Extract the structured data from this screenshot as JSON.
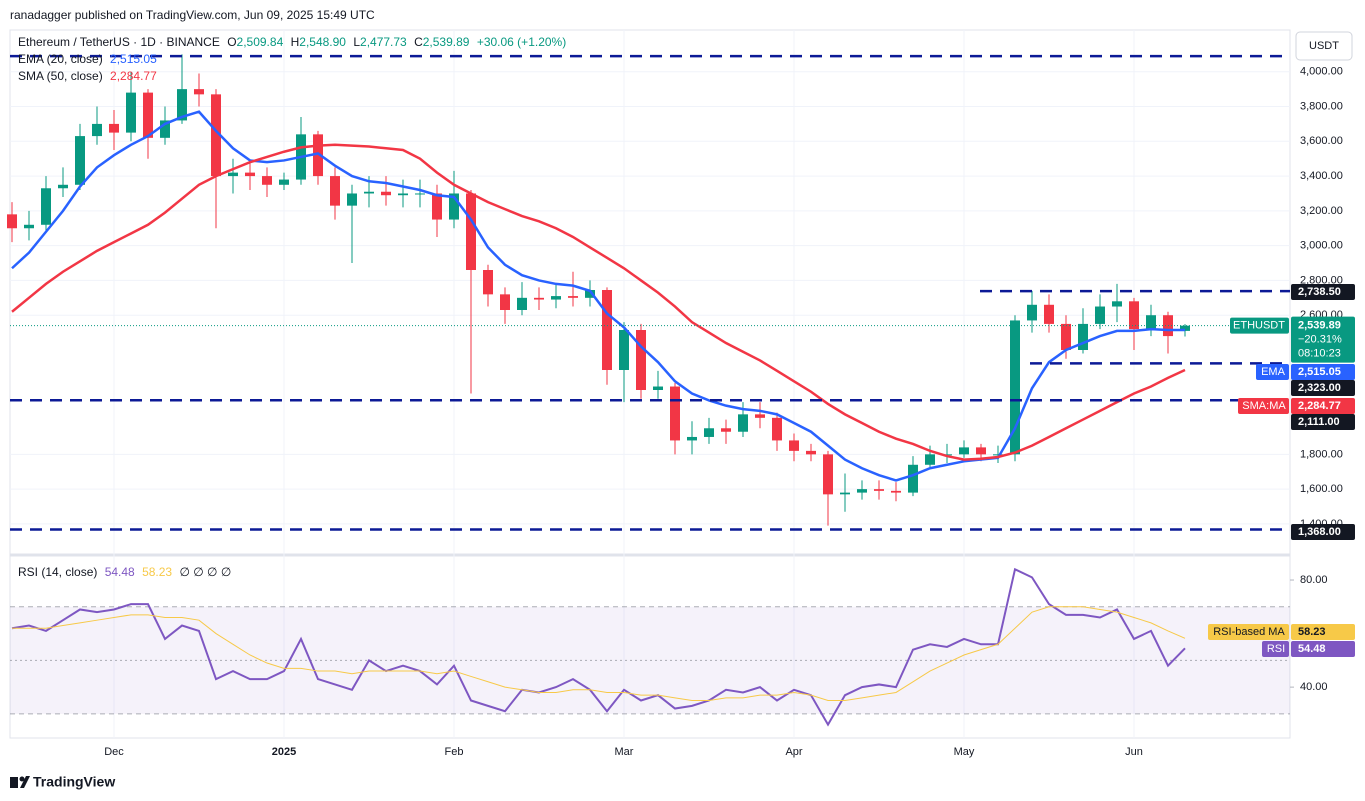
{
  "chart_data": [
    {
      "type": "candlestick",
      "header": "ranadagger published on TradingView.com, Jun 09, 2025 15:49 UTC",
      "title": "Ethereum / TetherUS · 1D · BINANCE",
      "quote": {
        "open_label": "O",
        "open": "2,509.84",
        "high_label": "H",
        "high": "2,548.90",
        "low_label": "L",
        "low": "2,477.73",
        "close_label": "C",
        "close": "2,539.89",
        "change": "+30.06 (+1.20%)"
      },
      "currency": "USDT",
      "attribution": "TradingView",
      "categories": [
        null,
        null,
        null,
        null,
        null,
        null,
        "Dec",
        null,
        null,
        null,
        null,
        null,
        null,
        null,
        null,
        null,
        "2025",
        null,
        null,
        null,
        null,
        null,
        null,
        null,
        null,
        null,
        "Feb",
        null,
        null,
        null,
        null,
        null,
        null,
        null,
        null,
        null,
        "Mar",
        null,
        null,
        null,
        null,
        null,
        null,
        null,
        null,
        null,
        "Apr",
        null,
        null,
        null,
        null,
        null,
        null,
        null,
        null,
        null,
        "May",
        null,
        null,
        null,
        null,
        null,
        null,
        null,
        null,
        null,
        "Jun",
        null,
        null,
        null
      ],
      "open": [
        3180,
        3100,
        3120,
        3330,
        3350,
        3630,
        3700,
        3650,
        3880,
        3620,
        3720,
        3900,
        3870,
        3400,
        3420,
        3400,
        3350,
        3380,
        3640,
        3400,
        3230,
        3300,
        3310,
        3290,
        3300,
        3300,
        3150,
        3300,
        2860,
        2720,
        2630,
        2700,
        2690,
        2710,
        2700,
        2745,
        2285,
        2515,
        2170,
        2190,
        1880,
        1900,
        1950,
        1930,
        2030,
        2010,
        1880,
        1820,
        1800,
        1570,
        1580,
        1600,
        1590,
        1580,
        1740,
        1800,
        1800,
        1840,
        1800,
        1800,
        2570,
        2660,
        2550,
        2400,
        2550,
        2650,
        2680,
        2520,
        2600,
        2509.84
      ],
      "high": [
        3250,
        3200,
        3400,
        3450,
        3700,
        3800,
        3780,
        4000,
        3900,
        3800,
        4100,
        3990,
        3900,
        3500,
        3480,
        3450,
        3420,
        3740,
        3660,
        3450,
        3350,
        3400,
        3400,
        3380,
        3380,
        3350,
        3430,
        3320,
        2890,
        2760,
        2790,
        2760,
        2780,
        2850,
        2800,
        2760,
        2560,
        2550,
        2280,
        2210,
        1990,
        2010,
        2000,
        2100,
        2100,
        2040,
        1920,
        1860,
        1820,
        1690,
        1650,
        1650,
        1640,
        1790,
        1850,
        1860,
        1880,
        1860,
        1850,
        2600,
        2740,
        2720,
        2600,
        2640,
        2720,
        2780,
        2700,
        2660,
        2620,
        2548.9
      ],
      "low": [
        3020,
        3030,
        3080,
        3280,
        3320,
        3580,
        3550,
        3600,
        3500,
        3580,
        3700,
        3800,
        3100,
        3300,
        3320,
        3280,
        3320,
        3350,
        3350,
        3150,
        2900,
        3220,
        3230,
        3220,
        3220,
        3050,
        3100,
        2150,
        2650,
        2550,
        2600,
        2630,
        2640,
        2650,
        2650,
        2200,
        2100,
        2120,
        2120,
        1800,
        1800,
        1860,
        1860,
        1900,
        1950,
        1820,
        1760,
        1760,
        1390,
        1470,
        1540,
        1540,
        1530,
        1560,
        1720,
        1750,
        1780,
        1760,
        1750,
        1760,
        2500,
        2500,
        2350,
        2380,
        2520,
        2560,
        2400,
        2480,
        2380,
        2477.73
      ],
      "close": [
        3100,
        3120,
        3330,
        3350,
        3630,
        3700,
        3650,
        3880,
        3620,
        3720,
        3900,
        3870,
        3400,
        3420,
        3400,
        3350,
        3380,
        3640,
        3400,
        3230,
        3300,
        3310,
        3290,
        3300,
        3300,
        3150,
        3300,
        2860,
        2720,
        2630,
        2700,
        2690,
        2710,
        2700,
        2745,
        2285,
        2515,
        2170,
        2190,
        1880,
        1900,
        1950,
        1930,
        2030,
        2010,
        1880,
        1820,
        1800,
        1570,
        1580,
        1600,
        1590,
        1580,
        1740,
        1800,
        1800,
        1840,
        1800,
        1800,
        2570,
        2660,
        2550,
        2400,
        2550,
        2650,
        2680,
        2520,
        2600,
        2480,
        2539.89
      ],
      "up_color": "#089981",
      "down_color": "#f23645",
      "series": [
        {
          "name": "EMA (20, close)",
          "badge": "EMA",
          "color": "#2962ff",
          "last_label": "2,515.05",
          "values": [
            2870,
            2960,
            3080,
            3200,
            3340,
            3450,
            3520,
            3580,
            3630,
            3700,
            3740,
            3770,
            3660,
            3560,
            3490,
            3480,
            3490,
            3510,
            3530,
            3460,
            3400,
            3370,
            3360,
            3340,
            3320,
            3290,
            3280,
            3150,
            2990,
            2890,
            2830,
            2800,
            2780,
            2770,
            2740,
            2610,
            2530,
            2420,
            2330,
            2220,
            2150,
            2110,
            2080,
            2060,
            2050,
            2030,
            1980,
            1930,
            1850,
            1770,
            1720,
            1680,
            1650,
            1680,
            1720,
            1740,
            1760,
            1770,
            1780,
            1950,
            2180,
            2330,
            2400,
            2440,
            2480,
            2510,
            2510,
            2520,
            2515,
            2515.05
          ]
        },
        {
          "name": "SMA (50, close)",
          "badge": "SMA:MA",
          "color": "#f23645",
          "last_label": "2,284.77",
          "values": [
            2620,
            2700,
            2780,
            2850,
            2910,
            2970,
            3020,
            3070,
            3120,
            3190,
            3270,
            3350,
            3400,
            3440,
            3480,
            3510,
            3540,
            3565,
            3575,
            3580,
            3575,
            3570,
            3560,
            3550,
            3500,
            3420,
            3350,
            3300,
            3250,
            3210,
            3170,
            3140,
            3100,
            3050,
            2990,
            2930,
            2870,
            2800,
            2730,
            2650,
            2560,
            2500,
            2440,
            2390,
            2340,
            2280,
            2220,
            2160,
            2090,
            2030,
            1980,
            1930,
            1890,
            1860,
            1820,
            1790,
            1770,
            1775,
            1785,
            1810,
            1850,
            1900,
            1950,
            2000,
            2050,
            2100,
            2150,
            2190,
            2240,
            2284.77
          ]
        }
      ],
      "ylim": [
        1250,
        4240
      ],
      "yticks": [
        {
          "value": 1400,
          "label": "1,400.00"
        },
        {
          "value": 1600,
          "label": "1,600.00"
        },
        {
          "value": 1800,
          "label": "1,800.00"
        },
        {
          "value": 2600,
          "label": "2,600.00"
        },
        {
          "value": 2800,
          "label": "2,800.00"
        },
        {
          "value": 3000,
          "label": "3,000.00"
        },
        {
          "value": 3200,
          "label": "3,200.00"
        },
        {
          "value": 3400,
          "label": "3,400.00"
        },
        {
          "value": 3600,
          "label": "3,600.00"
        },
        {
          "value": 3800,
          "label": "3,800.00"
        },
        {
          "value": 4000,
          "label": "4,000.00"
        }
      ],
      "grid": true,
      "levels": [
        4090,
        {
          "value": 2738.5,
          "label": "2,738.50"
        },
        {
          "value": 2323,
          "label": "2,323.00"
        },
        {
          "value": 2111,
          "label": "2,111.00"
        },
        {
          "value": 1368,
          "label": "1,368.00"
        }
      ],
      "level_color": "#0c1a96",
      "last_price": {
        "symbol": "ETHUSDT",
        "price": "2,539.89",
        "change": "−20.31%",
        "countdown": "08:10:23"
      }
    },
    {
      "type": "line",
      "title": "RSI (14, close)",
      "null_marks": "∅ ∅ ∅ ∅",
      "series": [
        {
          "name": "RSI",
          "color": "#7e57c2",
          "last_label": "54.48",
          "values": [
            62,
            63,
            61,
            65,
            69,
            68,
            69,
            71,
            71,
            58,
            63,
            61,
            43,
            46,
            43,
            43,
            46,
            58,
            43,
            41,
            39,
            50,
            46,
            48,
            46,
            41,
            48,
            35,
            33,
            31,
            39,
            38,
            40,
            43,
            39,
            31,
            39,
            35,
            37,
            32,
            33,
            35,
            39,
            38,
            40,
            35,
            39,
            37,
            26,
            37,
            40,
            41,
            40,
            54,
            56,
            55,
            58,
            56,
            56,
            84,
            81,
            71,
            67,
            67,
            66,
            69,
            58,
            61,
            48,
            54.48
          ]
        },
        {
          "name": "RSI-based MA",
          "color": "#f7c948",
          "last_label": "58.23",
          "values": [
            62,
            62,
            62,
            63,
            64,
            65,
            66,
            67,
            67,
            66,
            66,
            65,
            60,
            56,
            52,
            49,
            47,
            47,
            46,
            46,
            45,
            46,
            46,
            46,
            46,
            45,
            46,
            44,
            42,
            40,
            39,
            38,
            38,
            39,
            39,
            38,
            38,
            37,
            37,
            36,
            35,
            35,
            36,
            36,
            37,
            37,
            38,
            37,
            35,
            35,
            36,
            37,
            38,
            42,
            46,
            49,
            52,
            54,
            56,
            62,
            68,
            70,
            70,
            70,
            69,
            68,
            66,
            64,
            61,
            58.23
          ]
        }
      ],
      "ylim": [
        21,
        88.6
      ],
      "yticks": [
        {
          "value": 40,
          "label": "40.00"
        },
        {
          "value": 80,
          "label": "80.00"
        }
      ],
      "levels": [
        70,
        50,
        30
      ],
      "band_color": "#7e57c2"
    }
  ]
}
